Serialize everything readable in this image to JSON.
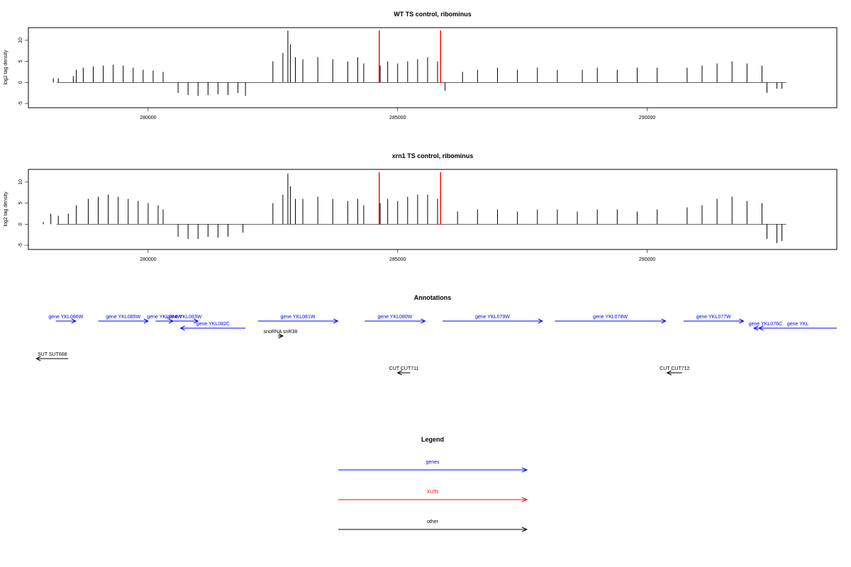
{
  "chart_data": [
    {
      "type": "bar",
      "title": "WT TS control, ribominus",
      "xlabel": "",
      "ylabel": "log2 tag density",
      "xlim": [
        277600,
        293800
      ],
      "ylim": [
        -6,
        13
      ],
      "yticks": [
        -5,
        0,
        5,
        10
      ],
      "xticks": [
        280000,
        285000,
        290000
      ],
      "highlight_lines": [
        284630,
        285860
      ],
      "highlight_color": "#ff0000",
      "series": [
        {
          "values": [
            [
              278100,
              1
            ],
            [
              278200,
              1
            ],
            [
              278500,
              1.5
            ],
            [
              278560,
              3
            ],
            [
              278700,
              3.5
            ],
            [
              278900,
              3.8
            ],
            [
              279100,
              4
            ],
            [
              279300,
              4.2
            ],
            [
              279500,
              4
            ],
            [
              279700,
              3.5
            ],
            [
              279900,
              3
            ],
            [
              280100,
              2.8
            ],
            [
              280300,
              2.5
            ],
            [
              280600,
              -2.5
            ],
            [
              280800,
              -3
            ],
            [
              281000,
              -3.2
            ],
            [
              281200,
              -3
            ],
            [
              281400,
              -2.8
            ],
            [
              281600,
              -3
            ],
            [
              281800,
              -2.5
            ],
            [
              281950,
              -3.2
            ],
            [
              282500,
              5
            ],
            [
              282700,
              7
            ],
            [
              282800,
              12.3
            ],
            [
              282850,
              9
            ],
            [
              282950,
              6
            ],
            [
              283100,
              5.5
            ],
            [
              283400,
              6
            ],
            [
              283700,
              5.5
            ],
            [
              284000,
              5
            ],
            [
              284200,
              6
            ],
            [
              284320,
              4.5
            ],
            [
              284650,
              4
            ],
            [
              284800,
              5
            ],
            [
              285000,
              4.5
            ],
            [
              285200,
              5
            ],
            [
              285400,
              5.5
            ],
            [
              285600,
              6
            ],
            [
              285800,
              5
            ],
            [
              285950,
              -2
            ],
            [
              286300,
              2.5
            ],
            [
              286600,
              3
            ],
            [
              287000,
              3.5
            ],
            [
              287400,
              3
            ],
            [
              287800,
              3.5
            ],
            [
              288200,
              3
            ],
            [
              288700,
              3
            ],
            [
              289000,
              3.5
            ],
            [
              289400,
              3
            ],
            [
              289800,
              3.5
            ],
            [
              290200,
              3.5
            ],
            [
              290800,
              3.5
            ],
            [
              291100,
              4
            ],
            [
              291400,
              4.5
            ],
            [
              291700,
              5
            ],
            [
              292000,
              4.5
            ],
            [
              292300,
              4
            ],
            [
              292400,
              -2.5
            ],
            [
              292600,
              -1.5
            ],
            [
              292700,
              -1.5
            ]
          ]
        }
      ]
    },
    {
      "type": "bar",
      "title": "xrn1 TS control, ribominus",
      "xlabel": "",
      "ylabel": "log2 tag density",
      "xlim": [
        277600,
        293800
      ],
      "ylim": [
        -6,
        13
      ],
      "yticks": [
        -5,
        0,
        5,
        10
      ],
      "xticks": [
        280000,
        285000,
        290000
      ],
      "highlight_lines": [
        284630,
        285860
      ],
      "highlight_color": "#ff0000",
      "series": [
        {
          "values": [
            [
              277900,
              0.5
            ],
            [
              278050,
              2.5
            ],
            [
              278200,
              2
            ],
            [
              278400,
              2.5
            ],
            [
              278560,
              4.5
            ],
            [
              278800,
              6
            ],
            [
              279000,
              6.5
            ],
            [
              279200,
              7
            ],
            [
              279400,
              6.5
            ],
            [
              279600,
              6
            ],
            [
              279800,
              5.5
            ],
            [
              280000,
              5
            ],
            [
              280200,
              4.5
            ],
            [
              280300,
              3.5
            ],
            [
              280600,
              -3
            ],
            [
              280800,
              -3.5
            ],
            [
              281000,
              -3.5
            ],
            [
              281200,
              -3
            ],
            [
              281400,
              -3.2
            ],
            [
              281600,
              -3
            ],
            [
              281900,
              -2
            ],
            [
              282500,
              5
            ],
            [
              282700,
              7
            ],
            [
              282800,
              12
            ],
            [
              282850,
              9
            ],
            [
              282950,
              6
            ],
            [
              283100,
              6
            ],
            [
              283400,
              6.5
            ],
            [
              283700,
              6
            ],
            [
              284000,
              5.5
            ],
            [
              284200,
              6
            ],
            [
              284320,
              4.5
            ],
            [
              284650,
              5
            ],
            [
              284800,
              6
            ],
            [
              285000,
              5.5
            ],
            [
              285200,
              6.5
            ],
            [
              285400,
              7
            ],
            [
              285600,
              7
            ],
            [
              285800,
              6
            ],
            [
              286200,
              3
            ],
            [
              286600,
              3.5
            ],
            [
              287000,
              3.5
            ],
            [
              287400,
              3
            ],
            [
              287800,
              3.5
            ],
            [
              288200,
              3.5
            ],
            [
              288600,
              3
            ],
            [
              289000,
              3.5
            ],
            [
              289400,
              3.5
            ],
            [
              289800,
              3
            ],
            [
              290200,
              3.5
            ],
            [
              290800,
              4
            ],
            [
              291100,
              4.5
            ],
            [
              291400,
              6
            ],
            [
              291700,
              6.5
            ],
            [
              292000,
              5.5
            ],
            [
              292300,
              5
            ],
            [
              292400,
              -3.5
            ],
            [
              292600,
              -4.5
            ],
            [
              292700,
              -4
            ]
          ]
        }
      ]
    },
    {
      "type": "annotation_track",
      "title": "Annotations",
      "xlim": [
        277600,
        293800
      ],
      "features": [
        {
          "label": "gene YKL086W",
          "start": 278150,
          "end": 278550,
          "strand": "+",
          "kind": "gene",
          "row": 0
        },
        {
          "label": "gene YKL085W",
          "start": 279000,
          "end": 280000,
          "strand": "+",
          "kind": "gene",
          "row": 0
        },
        {
          "label": "gene YKL084W",
          "start": 280150,
          "end": 280500,
          "strand": "+",
          "kind": "gene",
          "row": 0
        },
        {
          "label": "gene YKL083W",
          "start": 280450,
          "end": 281000,
          "strand": "+",
          "kind": "gene",
          "row": 0
        },
        {
          "label": "gene YKL082C",
          "start": 280650,
          "end": 281950,
          "strand": "-",
          "kind": "gene",
          "row": 1
        },
        {
          "label": "gene YKL081W",
          "start": 282200,
          "end": 283800,
          "strand": "+",
          "kind": "gene",
          "row": 0
        },
        {
          "label": "snoRNA snR38",
          "start": 282600,
          "end": 282700,
          "strand": "+",
          "kind": "other",
          "row": 2
        },
        {
          "label": "gene YKL080W",
          "start": 284340,
          "end": 285550,
          "strand": "+",
          "kind": "gene",
          "row": 0
        },
        {
          "label": "gene YKL079W",
          "start": 285900,
          "end": 287900,
          "strand": "+",
          "kind": "gene",
          "row": 0
        },
        {
          "label": "gene YKL078W",
          "start": 288150,
          "end": 290370,
          "strand": "+",
          "kind": "gene",
          "row": 0
        },
        {
          "label": "gene YKL077W",
          "start": 290730,
          "end": 291930,
          "strand": "+",
          "kind": "gene",
          "row": 0
        },
        {
          "label": "gene YKL076C",
          "start": 292140,
          "end": 292600,
          "strand": "-",
          "kind": "gene",
          "row": 1
        },
        {
          "label": "gene YKL",
          "start": 292240,
          "end": 293800,
          "strand": "-",
          "kind": "gene",
          "row": 1
        },
        {
          "label": "SUT SUT668",
          "start": 277760,
          "end": 278400,
          "strand": "-",
          "kind": "other",
          "row": 4
        },
        {
          "label": "CUT CUT711",
          "start": 285000,
          "end": 285250,
          "strand": "-",
          "kind": "other",
          "row": 6
        },
        {
          "label": "CUT CUT712",
          "start": 290400,
          "end": 290700,
          "strand": "-",
          "kind": "other",
          "row": 6
        }
      ]
    },
    {
      "type": "legend",
      "title": "Legend",
      "entries": [
        {
          "label": "genes",
          "color": "#0000ff"
        },
        {
          "label": "XUTs",
          "color": "#ff0000"
        },
        {
          "label": "other",
          "color": "#000000"
        }
      ]
    }
  ]
}
